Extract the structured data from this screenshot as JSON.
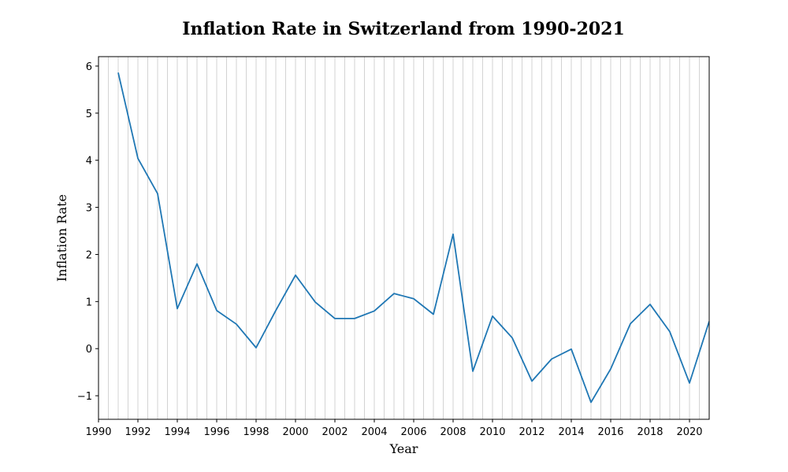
{
  "chart_data": {
    "type": "line",
    "title": "Inflation Rate in Switzerland from 1990-2021",
    "xlabel": "Year",
    "ylabel": "Inflation Rate",
    "xlim": [
      1990,
      2021
    ],
    "ylim": [
      -1.5,
      6.2
    ],
    "x_ticks": [
      1990,
      1992,
      1994,
      1996,
      1998,
      2000,
      2002,
      2004,
      2006,
      2008,
      2010,
      2012,
      2014,
      2016,
      2018,
      2020
    ],
    "y_ticks": [
      -1,
      0,
      1,
      2,
      3,
      4,
      5,
      6
    ],
    "grid": "vertical-only, every half year",
    "legend": "none",
    "series": [
      {
        "color": "#1f77b4",
        "x": [
          1991,
          1992,
          1993,
          1994,
          1995,
          1996,
          1997,
          1998,
          1999,
          2000,
          2001,
          2002,
          2003,
          2004,
          2005,
          2006,
          2007,
          2008,
          2009,
          2010,
          2011,
          2012,
          2013,
          2014,
          2015,
          2016,
          2017,
          2018,
          2019,
          2020,
          2021
        ],
        "values": [
          5.86,
          4.04,
          3.29,
          0.85,
          1.8,
          0.81,
          0.52,
          0.02,
          0.81,
          1.56,
          0.99,
          0.64,
          0.64,
          0.8,
          1.17,
          1.06,
          0.73,
          2.43,
          -0.48,
          0.69,
          0.23,
          -0.69,
          -0.22,
          -0.01,
          -1.14,
          -0.43,
          0.53,
          0.94,
          0.36,
          -0.73,
          0.58
        ]
      }
    ]
  }
}
